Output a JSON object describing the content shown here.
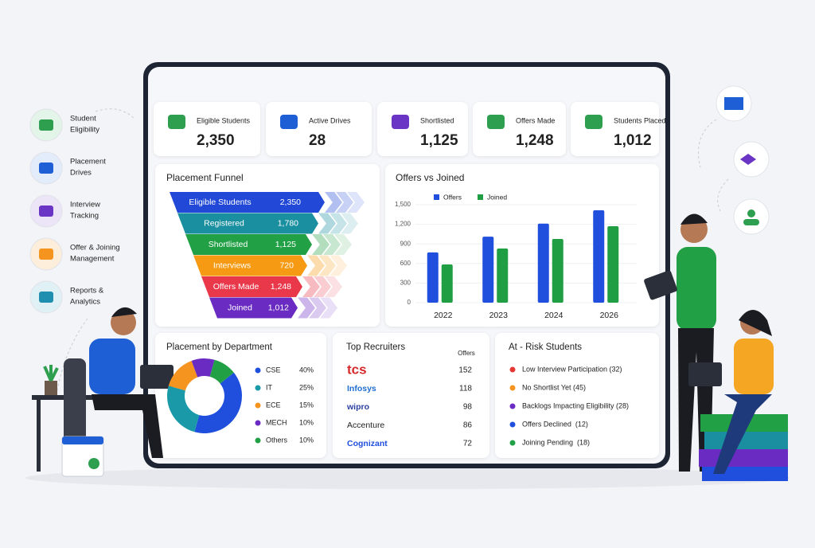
{
  "sidebar": [
    {
      "lines": [
        "Student",
        "Eligibility"
      ],
      "color": "#2e9e4f",
      "bg": "#e3f4e8"
    },
    {
      "lines": [
        "Placement",
        "Drives"
      ],
      "color": "#1f5fd6",
      "bg": "#e2ecfb"
    },
    {
      "lines": [
        "Interview",
        "Tracking"
      ],
      "color": "#6a35c4",
      "bg": "#ece5f8"
    },
    {
      "lines": [
        "Offer & Joining",
        "Management"
      ],
      "color": "#f5941f",
      "bg": "#fdeedc"
    },
    {
      "lines": [
        "Reports &",
        "Analytics"
      ],
      "color": "#1f8fb0",
      "bg": "#e0f1f6"
    }
  ],
  "kpis": [
    {
      "label": "Eligible Students",
      "value": "2,350",
      "color": "#2e9e4f"
    },
    {
      "label": "Active Drives",
      "value": "28",
      "color": "#1f5fd6"
    },
    {
      "label": "Shortlisted",
      "value": "1,125",
      "color": "#6a35c4"
    },
    {
      "label": "Offers Made",
      "value": "1,248",
      "color": "#2e9e4f"
    },
    {
      "label": "Students Placed",
      "value": "1,012",
      "color": "#2e9e4f"
    }
  ],
  "funnel": {
    "title": "Placement Funnel",
    "stages": [
      {
        "label": "Eligible Students",
        "value": "2,350",
        "color": "#2148d6"
      },
      {
        "label": "Registered",
        "value": "1,780",
        "color": "#1a8fa0"
      },
      {
        "label": "Shortlisted",
        "value": "1,125",
        "color": "#22a046"
      },
      {
        "label": "Interviews",
        "value": "720",
        "color": "#f59a12"
      },
      {
        "label": "Offers Made",
        "value": "1,248",
        "color": "#e8384a"
      },
      {
        "label": "Joined",
        "value": "1,012",
        "color": "#6a2bc2"
      }
    ]
  },
  "offers_chart": {
    "type": "bar",
    "title": "Offers vs Joined",
    "categories": [
      "2022",
      "2023",
      "2024",
      "2026"
    ],
    "series": [
      {
        "name": "Offers",
        "color": "#1f4fdc",
        "values": [
          770,
          1010,
          1210,
          1415
        ]
      },
      {
        "name": "Joined",
        "color": "#1f9e43",
        "values": [
          585,
          830,
          975,
          1170
        ]
      }
    ],
    "ylim": [
      0,
      1500
    ],
    "yticks": [
      0,
      300,
      600,
      900,
      {
        "value": 1200,
        "label": "1,200"
      },
      {
        "value": 1500,
        "label": "1,500"
      }
    ]
  },
  "departments": {
    "type": "pie",
    "title": "Placement by Department",
    "categories": [
      "CSE",
      "IT",
      "ECE",
      "MECH",
      "Others"
    ],
    "values": [
      40,
      25,
      15,
      10,
      10
    ],
    "value_labels": [
      "40%",
      "25%",
      "15%",
      "10%",
      "10%"
    ],
    "colors": [
      "#1f4fdc",
      "#1a9aa8",
      "#f5941f",
      "#6a2bc2",
      "#22a046"
    ]
  },
  "recruiters": {
    "title": "Top Recruiters",
    "column": "Offers",
    "rows": [
      {
        "name": "tcs",
        "value": 152,
        "color": "#d62a2a"
      },
      {
        "name": "Infosys",
        "value": 118,
        "color": "#1f6fd0"
      },
      {
        "name": "wipro",
        "value": 98,
        "color": "#2a3fa0"
      },
      {
        "name": "Accenture",
        "value": 86,
        "color": "#222222"
      },
      {
        "name": "Cognizant",
        "value": 72,
        "color": "#1f4fdc"
      }
    ]
  },
  "at_risk": {
    "title": "At - Risk Students",
    "items": [
      {
        "text": "Low Interview Participation (32)",
        "color": "#e53935"
      },
      {
        "text": "No Shortlist Yet (45)",
        "color": "#f5941f"
      },
      {
        "text": "Backlogs Impacting Eligibility (28)",
        "color": "#6a2bc2"
      },
      {
        "text": "Offers Declined  (12)",
        "color": "#1f4fdc"
      },
      {
        "text": "Joining Pending  (18)",
        "color": "#22a046"
      }
    ]
  }
}
